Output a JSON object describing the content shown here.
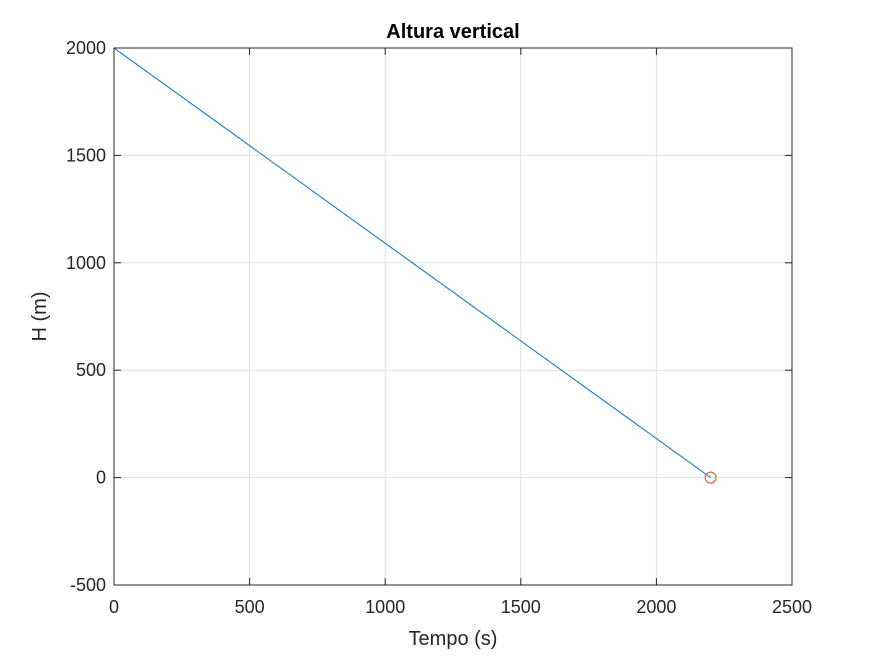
{
  "chart_data": {
    "type": "line",
    "title": "Altura vertical",
    "xlabel": "Tempo (s)",
    "ylabel": "H (m)",
    "xlim": [
      0,
      2500
    ],
    "ylim": [
      -500,
      2000
    ],
    "xticks": [
      0,
      500,
      1000,
      1500,
      2000,
      2500
    ],
    "yticks": [
      -500,
      0,
      500,
      1000,
      1500,
      2000
    ],
    "xtick_labels": [
      "0",
      "500",
      "1000",
      "1500",
      "2000",
      "2500"
    ],
    "ytick_labels": [
      "-500",
      "0",
      "500",
      "1000",
      "1500",
      "2000"
    ],
    "grid": true,
    "series": [
      {
        "x": [
          0,
          2200
        ],
        "y": [
          2000,
          0
        ],
        "color": "#0072BD",
        "style": "line"
      }
    ],
    "markers": [
      {
        "x": 2200,
        "y": 0,
        "symbol": "circle",
        "color": "#D95319"
      }
    ]
  }
}
